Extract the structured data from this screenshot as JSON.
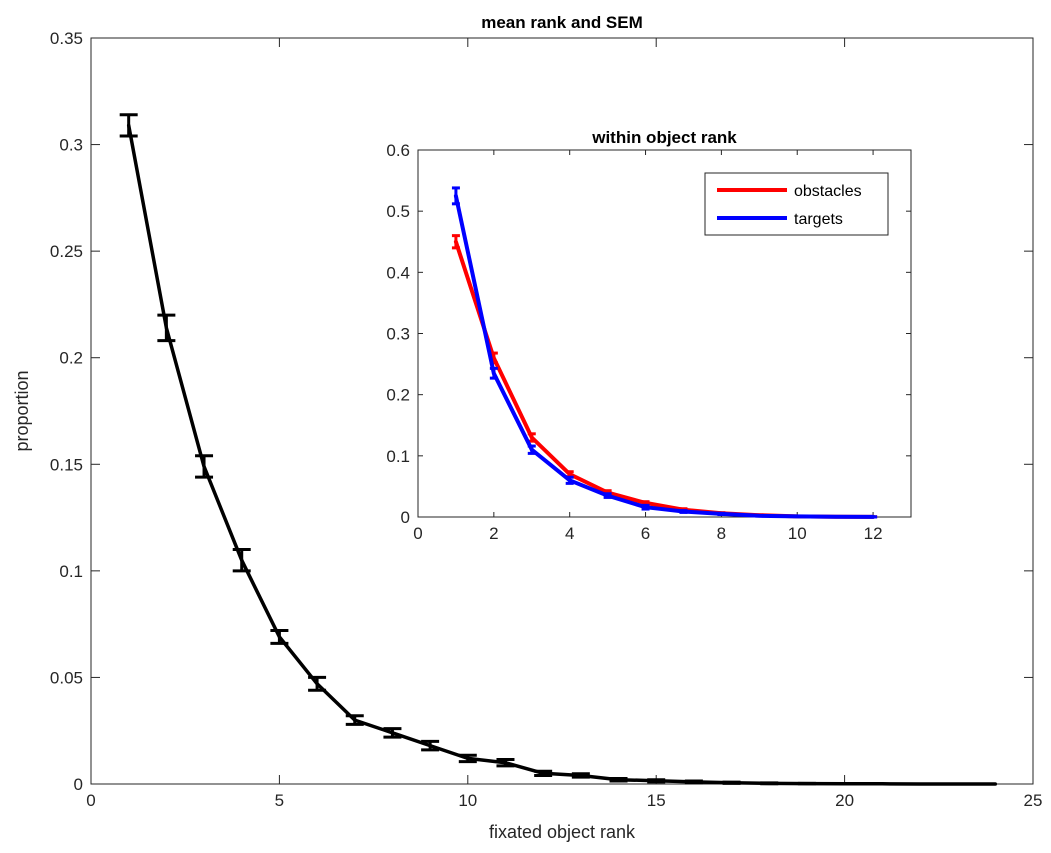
{
  "chart_data": [
    {
      "type": "line",
      "title": "mean rank and SEM",
      "xlabel": "fixated object rank",
      "ylabel": "proportion",
      "xlim": [
        0,
        25
      ],
      "ylim": [
        0,
        0.35
      ],
      "xticks": [
        0,
        5,
        10,
        15,
        20,
        25
      ],
      "yticks": [
        0,
        0.05,
        0.1,
        0.15,
        0.2,
        0.25,
        0.3,
        0.35
      ],
      "xtick_labels": [
        "0",
        "5",
        "10",
        "15",
        "20",
        "25"
      ],
      "ytick_labels": [
        "0",
        "0.05",
        "0.1",
        "0.15",
        "0.2",
        "0.25",
        "0.3",
        "0.35"
      ],
      "grid": false,
      "series": [
        {
          "color": "#000000",
          "x": [
            1,
            2,
            3,
            4,
            5,
            6,
            7,
            8,
            9,
            10,
            11,
            12,
            13,
            14,
            15,
            16,
            17,
            18,
            19,
            20,
            21,
            22,
            23,
            24
          ],
          "values": [
            0.309,
            0.214,
            0.149,
            0.105,
            0.069,
            0.047,
            0.03,
            0.024,
            0.018,
            0.012,
            0.01,
            0.005,
            0.004,
            0.002,
            0.0015,
            0.001,
            0.0006,
            0.0003,
            0.0002,
            0.0001,
            0.0001,
            0,
            0,
            0
          ],
          "sem": [
            0.005,
            0.006,
            0.005,
            0.005,
            0.003,
            0.003,
            0.002,
            0.002,
            0.002,
            0.0015,
            0.0015,
            0.001,
            0.0008,
            0.0006,
            0.0005,
            0.0004,
            0.0003,
            0.0002,
            0.0001,
            0,
            0,
            0,
            0,
            0
          ]
        }
      ]
    },
    {
      "type": "line",
      "title": "within object rank",
      "xlim": [
        0,
        13
      ],
      "ylim": [
        0,
        0.6
      ],
      "xticks": [
        0,
        2,
        4,
        6,
        8,
        10,
        12
      ],
      "yticks": [
        0,
        0.1,
        0.2,
        0.3,
        0.4,
        0.5,
        0.6
      ],
      "xtick_labels": [
        "0",
        "2",
        "4",
        "6",
        "8",
        "10",
        "12"
      ],
      "ytick_labels": [
        "0",
        "0.1",
        "0.2",
        "0.3",
        "0.4",
        "0.5",
        "0.6"
      ],
      "grid": false,
      "legend_position": "top-right",
      "series": [
        {
          "name": "obstacles",
          "color": "#ff0000",
          "x": [
            1,
            2,
            3,
            4,
            5,
            6,
            7,
            8,
            9,
            10,
            11,
            12
          ],
          "values": [
            0.45,
            0.26,
            0.13,
            0.07,
            0.04,
            0.023,
            0.012,
            0.006,
            0.003,
            0.001,
            0.0005,
            0.0002
          ],
          "sem": [
            0.01,
            0.008,
            0.006,
            0.004,
            0.003,
            0.002,
            0.0015,
            0.001,
            0.0005,
            0.0003,
            0.0002,
            0.0001
          ]
        },
        {
          "name": "targets",
          "color": "#0000ff",
          "x": [
            1,
            2,
            3,
            4,
            5,
            6,
            7,
            8,
            9,
            10,
            11,
            12
          ],
          "values": [
            0.525,
            0.235,
            0.11,
            0.06,
            0.035,
            0.016,
            0.009,
            0.005,
            0.002,
            0.001,
            0.0005,
            0.0002
          ],
          "sem": [
            0.013,
            0.008,
            0.006,
            0.005,
            0.003,
            0.003,
            0.0015,
            0.001,
            0.0005,
            0.0003,
            0.0002,
            0.0001
          ]
        }
      ]
    }
  ]
}
